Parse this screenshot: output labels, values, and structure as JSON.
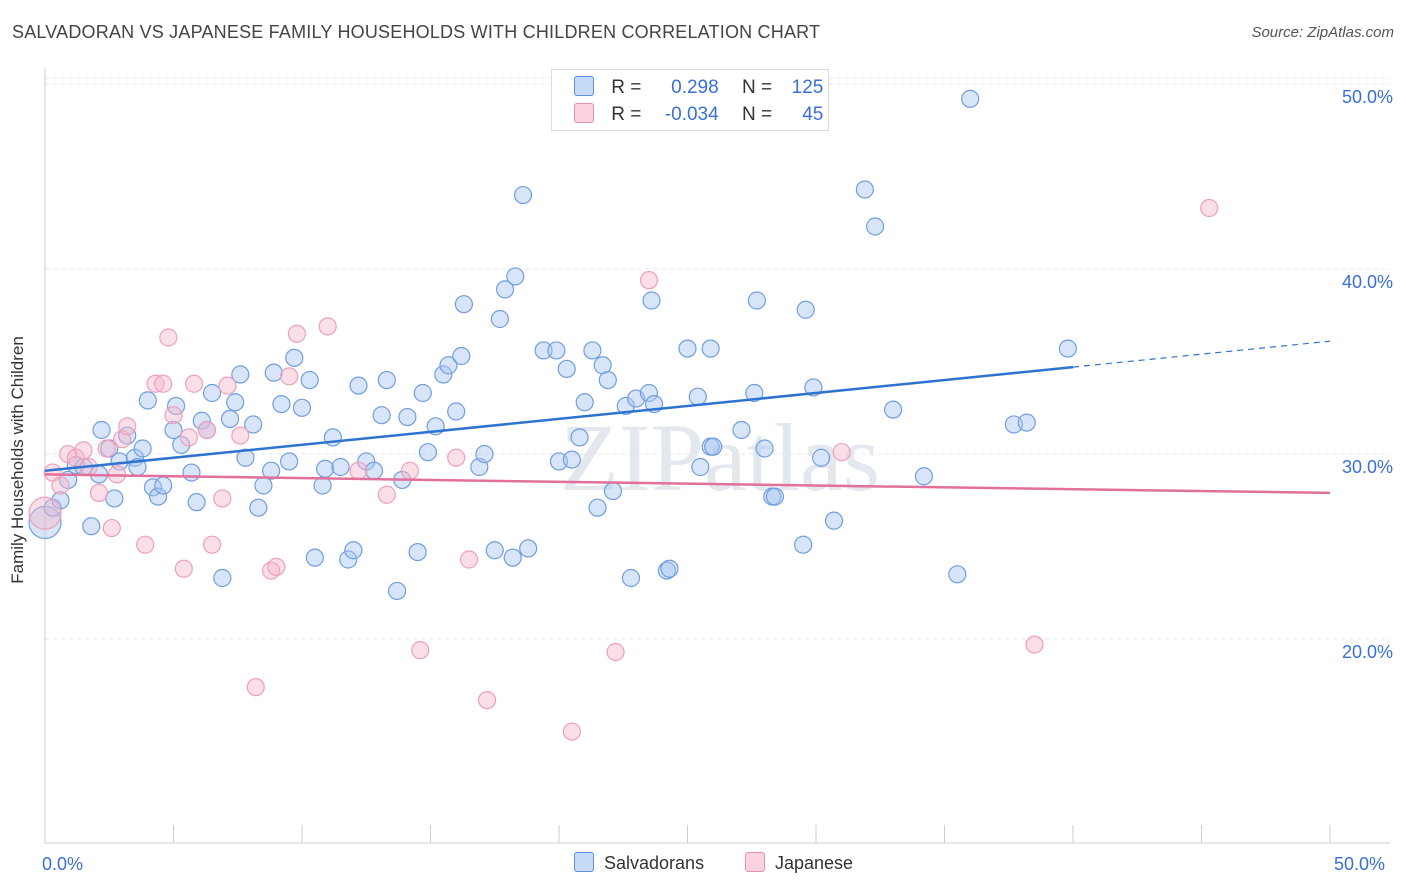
{
  "title": "SALVADORAN VS JAPANESE FAMILY HOUSEHOLDS WITH CHILDREN CORRELATION CHART",
  "source": "Source: ZipAtlas.com",
  "watermark": "ZIPatlas",
  "legend_top": [
    {
      "r_label": "R =",
      "r_value": "0.298",
      "n_label": "N =",
      "n_value": "125",
      "color": "#a9c6f0"
    },
    {
      "r_label": "R =",
      "r_value": "-0.034",
      "n_label": "N =",
      "n_value": "45",
      "color": "#f6b9cc"
    }
  ],
  "legend_bottom": [
    "Salvadorans",
    "Japanese"
  ],
  "x_tick_left": "0.0%",
  "x_tick_right": "50.0%",
  "chart_data": {
    "type": "scatter",
    "title": "SALVADORAN VS JAPANESE FAMILY HOUSEHOLDS WITH CHILDREN CORRELATION CHART",
    "xlabel": "",
    "ylabel": "Family Households with Children",
    "xlim": [
      0,
      50
    ],
    "ylim": [
      10,
      51.5
    ],
    "y_ticks": [
      20,
      30,
      40,
      50
    ],
    "y_tick_labels": [
      "20.0%",
      "30.0%",
      "40.0%",
      "50.0%"
    ],
    "grid": true,
    "colors": {
      "Salvadorans": "#5b8fdb",
      "Japanese": "#ec8fae",
      "Salvadorans_line": "#2f73d1",
      "Japanese_line": "#e2709a"
    },
    "series": [
      {
        "name": "Salvadorans",
        "trend": {
          "x0": 0,
          "y0": 29.8,
          "x1": 40,
          "y1": 35.4,
          "dashed_to_x": 50,
          "dashed_to_y": 36.8
        },
        "points": [
          [
            0.0,
            27.0
          ],
          [
            0.3,
            27.8
          ],
          [
            0.6,
            28.2
          ],
          [
            0.9,
            29.3
          ],
          [
            1.2,
            30.1
          ],
          [
            1.5,
            30.0
          ],
          [
            1.8,
            26.8
          ],
          [
            2.1,
            29.6
          ],
          [
            2.2,
            32.0
          ],
          [
            2.5,
            31.0
          ],
          [
            2.7,
            28.3
          ],
          [
            2.9,
            30.3
          ],
          [
            3.2,
            31.7
          ],
          [
            3.5,
            30.5
          ],
          [
            3.6,
            30.0
          ],
          [
            3.8,
            31.0
          ],
          [
            4.0,
            33.6
          ],
          [
            4.2,
            28.9
          ],
          [
            4.4,
            28.4
          ],
          [
            4.6,
            29.0
          ],
          [
            5.0,
            32.0
          ],
          [
            5.1,
            33.3
          ],
          [
            5.3,
            31.2
          ],
          [
            5.7,
            29.7
          ],
          [
            5.9,
            28.1
          ],
          [
            6.1,
            32.5
          ],
          [
            6.3,
            32.0
          ],
          [
            6.5,
            34.0
          ],
          [
            6.9,
            24.0
          ],
          [
            7.2,
            32.6
          ],
          [
            7.4,
            33.5
          ],
          [
            7.6,
            35.0
          ],
          [
            7.8,
            30.5
          ],
          [
            8.1,
            32.3
          ],
          [
            8.3,
            27.8
          ],
          [
            8.5,
            29.0
          ],
          [
            8.8,
            29.8
          ],
          [
            8.9,
            35.1
          ],
          [
            9.2,
            33.4
          ],
          [
            9.5,
            30.3
          ],
          [
            9.7,
            35.9
          ],
          [
            10.0,
            33.2
          ],
          [
            10.3,
            34.7
          ],
          [
            10.5,
            25.1
          ],
          [
            10.8,
            29.0
          ],
          [
            10.9,
            29.9
          ],
          [
            11.2,
            31.6
          ],
          [
            11.5,
            30.0
          ],
          [
            11.8,
            25.0
          ],
          [
            12.0,
            25.5
          ],
          [
            12.2,
            34.4
          ],
          [
            12.5,
            30.3
          ],
          [
            12.8,
            29.8
          ],
          [
            13.1,
            32.8
          ],
          [
            13.3,
            34.7
          ],
          [
            13.7,
            23.3
          ],
          [
            13.9,
            29.3
          ],
          [
            14.1,
            32.7
          ],
          [
            14.5,
            25.4
          ],
          [
            14.7,
            34.0
          ],
          [
            14.9,
            30.8
          ],
          [
            15.2,
            32.2
          ],
          [
            15.5,
            35.0
          ],
          [
            15.7,
            35.5
          ],
          [
            16.0,
            33.0
          ],
          [
            16.2,
            36.0
          ],
          [
            16.3,
            38.8
          ],
          [
            16.9,
            30.0
          ],
          [
            17.1,
            30.7
          ],
          [
            17.5,
            25.5
          ],
          [
            17.7,
            38.0
          ],
          [
            17.9,
            39.6
          ],
          [
            18.2,
            25.1
          ],
          [
            18.3,
            40.3
          ],
          [
            18.6,
            44.7
          ],
          [
            18.8,
            25.6
          ],
          [
            19.4,
            36.3
          ],
          [
            19.9,
            36.3
          ],
          [
            20.0,
            30.3
          ],
          [
            20.3,
            35.3
          ],
          [
            20.5,
            30.4
          ],
          [
            20.8,
            31.6
          ],
          [
            21.0,
            33.5
          ],
          [
            21.3,
            36.3
          ],
          [
            21.5,
            27.8
          ],
          [
            21.7,
            35.5
          ],
          [
            21.9,
            34.7
          ],
          [
            22.1,
            28.7
          ],
          [
            22.6,
            33.3
          ],
          [
            22.8,
            24.0
          ],
          [
            23.0,
            33.7
          ],
          [
            23.5,
            34.0
          ],
          [
            23.6,
            39.0
          ],
          [
            23.7,
            33.4
          ],
          [
            24.2,
            24.4
          ],
          [
            24.3,
            24.5
          ],
          [
            25.0,
            36.4
          ],
          [
            25.4,
            33.8
          ],
          [
            25.5,
            30.0
          ],
          [
            25.9,
            36.4
          ],
          [
            25.9,
            31.1
          ],
          [
            26.0,
            31.1
          ],
          [
            27.1,
            32.0
          ],
          [
            27.6,
            34.0
          ],
          [
            27.7,
            39.0
          ],
          [
            28.0,
            31.0
          ],
          [
            28.3,
            28.4
          ],
          [
            28.4,
            28.4
          ],
          [
            29.5,
            25.8
          ],
          [
            29.6,
            38.5
          ],
          [
            29.9,
            34.3
          ],
          [
            30.2,
            30.5
          ],
          [
            30.7,
            27.1
          ],
          [
            31.9,
            45.0
          ],
          [
            32.3,
            43.0
          ],
          [
            33.0,
            33.1
          ],
          [
            34.2,
            29.5
          ],
          [
            35.5,
            24.2
          ],
          [
            36.0,
            49.9
          ],
          [
            37.7,
            32.3
          ],
          [
            38.2,
            32.4
          ],
          [
            39.8,
            36.4
          ]
        ]
      },
      {
        "name": "Japanese",
        "trend": {
          "x0": 0,
          "y0": 29.6,
          "x1": 50,
          "y1": 28.6
        },
        "points": [
          [
            0.0,
            27.5
          ],
          [
            0.3,
            29.7
          ],
          [
            0.6,
            29.0
          ],
          [
            0.9,
            30.7
          ],
          [
            1.2,
            30.5
          ],
          [
            1.5,
            30.9
          ],
          [
            1.7,
            30.0
          ],
          [
            2.1,
            28.6
          ],
          [
            2.4,
            31.0
          ],
          [
            2.6,
            26.7
          ],
          [
            2.8,
            29.6
          ],
          [
            3.0,
            31.5
          ],
          [
            3.2,
            32.2
          ],
          [
            3.9,
            25.8
          ],
          [
            4.3,
            34.5
          ],
          [
            4.6,
            34.5
          ],
          [
            4.8,
            37.0
          ],
          [
            5.0,
            32.8
          ],
          [
            5.4,
            24.5
          ],
          [
            5.6,
            31.6
          ],
          [
            5.8,
            34.5
          ],
          [
            6.3,
            32.0
          ],
          [
            6.5,
            25.8
          ],
          [
            6.9,
            28.3
          ],
          [
            7.1,
            34.4
          ],
          [
            7.6,
            31.7
          ],
          [
            8.2,
            18.1
          ],
          [
            8.8,
            24.4
          ],
          [
            9.0,
            24.6
          ],
          [
            9.5,
            34.9
          ],
          [
            9.8,
            37.2
          ],
          [
            11.0,
            37.6
          ],
          [
            12.2,
            29.8
          ],
          [
            13.3,
            28.5
          ],
          [
            14.2,
            29.8
          ],
          [
            14.6,
            20.1
          ],
          [
            16.0,
            30.5
          ],
          [
            16.5,
            25.0
          ],
          [
            17.2,
            17.4
          ],
          [
            20.5,
            15.7
          ],
          [
            22.2,
            20.0
          ],
          [
            23.5,
            40.1
          ],
          [
            31.0,
            30.8
          ],
          [
            38.5,
            20.4
          ],
          [
            45.3,
            44.0
          ]
        ]
      }
    ]
  }
}
